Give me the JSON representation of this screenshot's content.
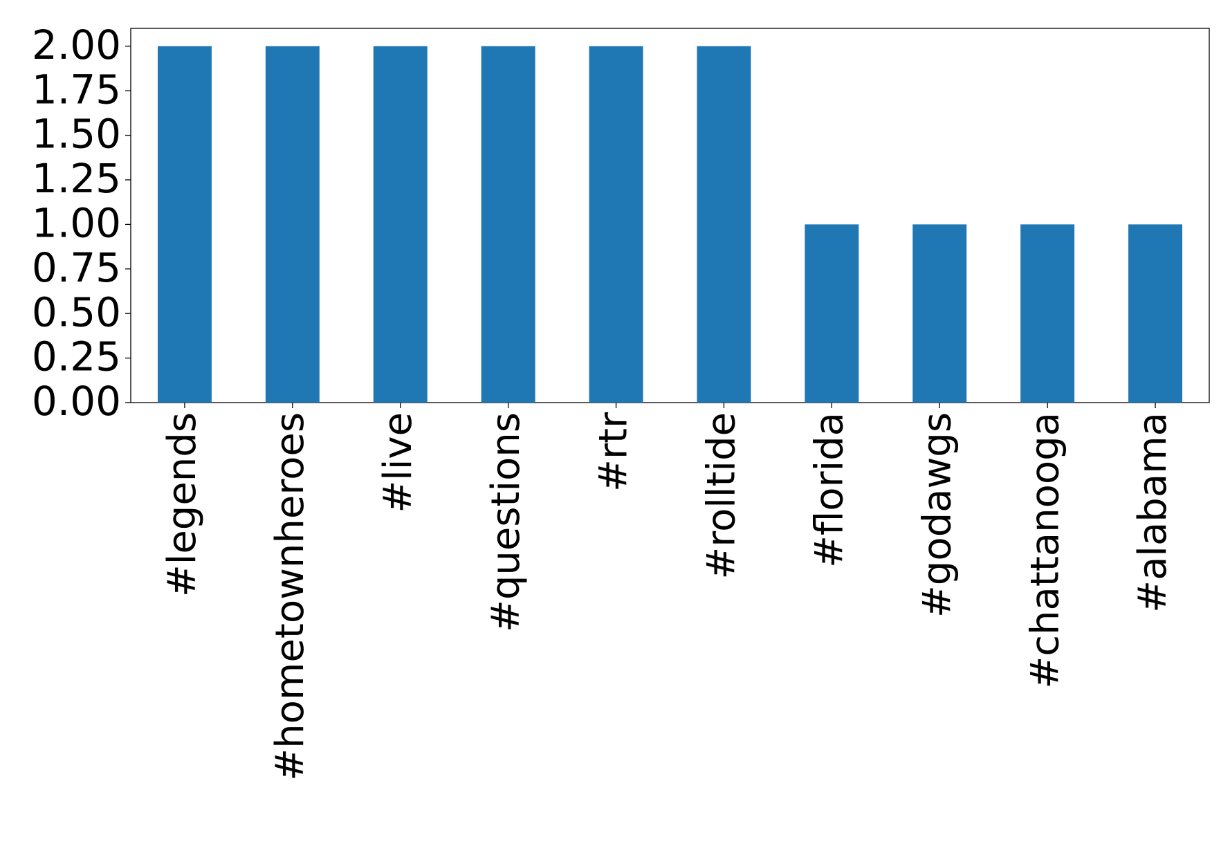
{
  "chart_data": {
    "type": "bar",
    "categories": [
      "#legends",
      "#hometownheroes",
      "#live",
      "#questions",
      "#rtr",
      "#rolltide",
      "#florida",
      "#godawgs",
      "#chattanooga",
      "#alabama"
    ],
    "values": [
      2,
      2,
      2,
      2,
      2,
      2,
      1,
      1,
      1,
      1
    ],
    "color": "#1f77b4",
    "ylim": [
      0,
      2.1
    ],
    "yticks": [
      {
        "value": 0,
        "label": "0.00"
      },
      {
        "value": 0.25,
        "label": "0.25"
      },
      {
        "value": 0.5,
        "label": "0.50"
      },
      {
        "value": 0.75,
        "label": "0.75"
      },
      {
        "value": 1,
        "label": "1.00"
      },
      {
        "value": 1.25,
        "label": "1.25"
      },
      {
        "value": 1.5,
        "label": "1.50"
      },
      {
        "value": 1.75,
        "label": "1.75"
      },
      {
        "value": 2,
        "label": "2.00"
      }
    ],
    "grid": false
  }
}
